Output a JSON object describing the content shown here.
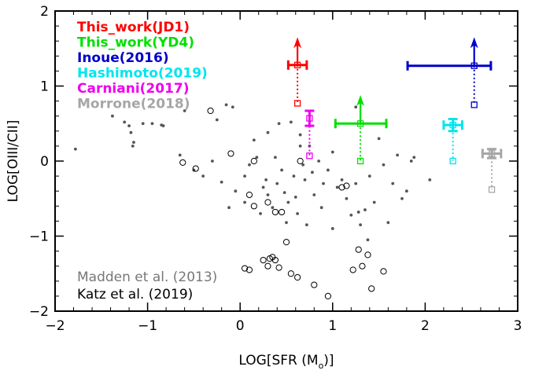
{
  "chart_data": {
    "type": "scatter",
    "xlabel": "LOG[SFR (M",
    "xlabel_sub": "o",
    "xlabel_end": ")]",
    "ylabel": "LOG[OIII/CII]",
    "xlim": [
      -2,
      3
    ],
    "ylim": [
      -2,
      2
    ],
    "xticks": [
      -2,
      -1,
      0,
      1,
      2,
      3
    ],
    "yticks": [
      -2,
      -1,
      0,
      1,
      2
    ],
    "xtick_labels": [
      "−2",
      "−1",
      "0",
      "1",
      "2",
      "3"
    ],
    "ytick_labels": [
      "−2",
      "−1",
      "0",
      "1",
      "2"
    ],
    "legend": [
      {
        "label": "This_work(JD1)",
        "color": "#ff0000"
      },
      {
        "label": "This_work(YD4)",
        "color": "#00e000"
      },
      {
        "label": "Inoue(2016)",
        "color": "#0000cc"
      },
      {
        "label": "Hashimoto(2019)",
        "color": "#00e5ee"
      },
      {
        "label": "Carniani(2017)",
        "color": "#ee00ee"
      },
      {
        "label": "Morrone(2018)",
        "color": "#a6a6a6"
      }
    ],
    "annotations": [
      {
        "label": "Madden et al. (2013)",
        "color": "#777777"
      },
      {
        "label": "Katz et al. (2019)",
        "color": "#000000"
      }
    ],
    "madden_dots": [
      [
        -1.78,
        0.16
      ],
      [
        -1.38,
        0.6
      ],
      [
        -1.25,
        0.52
      ],
      [
        -1.2,
        0.47
      ],
      [
        -1.18,
        0.38
      ],
      [
        -1.15,
        0.25
      ],
      [
        -1.16,
        0.2
      ],
      [
        -1.05,
        0.5
      ],
      [
        -0.95,
        0.5
      ],
      [
        -0.85,
        0.48
      ],
      [
        -0.83,
        0.47
      ],
      [
        -0.65,
        0.08
      ],
      [
        -0.6,
        0.67
      ],
      [
        -0.5,
        -0.12
      ],
      [
        -0.4,
        -0.2
      ],
      [
        -0.3,
        0.0
      ],
      [
        -0.25,
        0.55
      ],
      [
        -0.2,
        -0.28
      ],
      [
        -0.15,
        0.75
      ],
      [
        -0.08,
        0.72
      ],
      [
        -0.12,
        -0.62
      ],
      [
        -0.05,
        -0.4
      ],
      [
        0.05,
        -0.2
      ],
      [
        0.05,
        -0.55
      ],
      [
        0.15,
        0.28
      ],
      [
        0.18,
        0.05
      ],
      [
        0.1,
        -0.05
      ],
      [
        0.22,
        -0.7
      ],
      [
        0.25,
        -0.35
      ],
      [
        0.28,
        -0.25
      ],
      [
        0.3,
        0.38
      ],
      [
        0.3,
        -0.45
      ],
      [
        0.35,
        -0.62
      ],
      [
        0.38,
        0.05
      ],
      [
        0.4,
        -0.3
      ],
      [
        0.42,
        0.5
      ],
      [
        0.45,
        -0.12
      ],
      [
        0.48,
        -0.42
      ],
      [
        0.5,
        -0.82
      ],
      [
        0.52,
        -0.55
      ],
      [
        0.55,
        0.52
      ],
      [
        0.58,
        -0.2
      ],
      [
        0.6,
        -0.48
      ],
      [
        0.62,
        -0.7
      ],
      [
        0.65,
        0.2
      ],
      [
        0.65,
        0.35
      ],
      [
        0.68,
        -0.05
      ],
      [
        0.7,
        -0.25
      ],
      [
        0.72,
        -0.85
      ],
      [
        0.75,
        0.2
      ],
      [
        0.78,
        -0.15
      ],
      [
        0.8,
        -0.45
      ],
      [
        0.85,
        0.0
      ],
      [
        0.88,
        -0.62
      ],
      [
        0.9,
        -0.3
      ],
      [
        0.95,
        -0.12
      ],
      [
        1.0,
        0.12
      ],
      [
        1.0,
        -0.9
      ],
      [
        1.05,
        -0.35
      ],
      [
        1.1,
        -0.25
      ],
      [
        1.15,
        -0.5
      ],
      [
        1.2,
        -0.72
      ],
      [
        1.25,
        -0.3
      ],
      [
        1.28,
        -0.68
      ],
      [
        1.3,
        -0.85
      ],
      [
        1.35,
        -0.65
      ],
      [
        1.38,
        -1.05
      ],
      [
        1.4,
        -0.2
      ],
      [
        1.45,
        -0.55
      ],
      [
        1.5,
        0.3
      ],
      [
        1.55,
        -0.05
      ],
      [
        1.6,
        -0.82
      ],
      [
        1.65,
        -0.3
      ],
      [
        1.7,
        0.08
      ],
      [
        1.75,
        -0.5
      ],
      [
        1.8,
        -0.4
      ],
      [
        1.85,
        0.0
      ],
      [
        1.88,
        0.05
      ],
      [
        2.05,
        -0.25
      ],
      [
        1.25,
        0.72
      ]
    ],
    "katz_circles": [
      [
        -0.32,
        0.67
      ],
      [
        -0.62,
        -0.02
      ],
      [
        -0.48,
        -0.1
      ],
      [
        -0.1,
        0.1
      ],
      [
        0.15,
        0.0
      ],
      [
        0.1,
        -0.45
      ],
      [
        0.15,
        -0.6
      ],
      [
        0.3,
        -0.55
      ],
      [
        0.38,
        -0.68
      ],
      [
        0.45,
        -0.68
      ],
      [
        0.5,
        -1.08
      ],
      [
        0.65,
        0.0
      ],
      [
        1.1,
        -0.35
      ],
      [
        1.15,
        -0.33
      ],
      [
        0.05,
        -1.43
      ],
      [
        0.1,
        -1.45
      ],
      [
        0.25,
        -1.32
      ],
      [
        0.3,
        -1.4
      ],
      [
        0.32,
        -1.3
      ],
      [
        0.35,
        -1.28
      ],
      [
        0.38,
        -1.32
      ],
      [
        0.42,
        -1.42
      ],
      [
        0.55,
        -1.5
      ],
      [
        0.62,
        -1.55
      ],
      [
        0.8,
        -1.65
      ],
      [
        1.22,
        -1.45
      ],
      [
        1.28,
        -1.18
      ],
      [
        1.32,
        -1.4
      ],
      [
        1.38,
        -1.25
      ],
      [
        1.42,
        -1.7
      ],
      [
        1.55,
        -1.47
      ],
      [
        0.95,
        -1.8
      ]
    ],
    "points": [
      {
        "name": "This_work(JD1)",
        "x": 0.62,
        "y": 1.28,
        "xerr": 0.1,
        "color": "#ff0000",
        "cap": "arrow",
        "limit_y": 0.77,
        "arrow_top": 1.65
      },
      {
        "name": "This_work(YD4)",
        "x": 1.3,
        "y": 0.5,
        "xerr_lo": 0.27,
        "xerr_hi": 0.28,
        "color": "#00e000",
        "cap": "arrow",
        "limit_y": 0.0,
        "arrow_top": 0.88
      },
      {
        "name": "Inoue(2016)",
        "x": 2.53,
        "y": 1.27,
        "xerr_lo": 0.72,
        "xerr_hi": 0.18,
        "color": "#0000cc",
        "cap": "arrow",
        "limit_y": 0.75,
        "arrow_top": 1.65
      },
      {
        "name": "Hashimoto(2019)",
        "x": 2.3,
        "y": 0.48,
        "xerr": 0.1,
        "yerr": 0.08,
        "color": "#00e5ee",
        "cap": "error",
        "limit_y": 0.0
      },
      {
        "name": "Carniani(2017)",
        "x": 0.75,
        "y": 0.57,
        "yerr": 0.1,
        "color": "#ee00ee",
        "cap": "error",
        "limit_y": 0.07
      },
      {
        "name": "Morrone(2018)",
        "x": 2.72,
        "y": 0.1,
        "xerr": 0.1,
        "yerr": 0.06,
        "color": "#a6a6a6",
        "cap": "error",
        "limit_y": -0.38
      }
    ]
  }
}
